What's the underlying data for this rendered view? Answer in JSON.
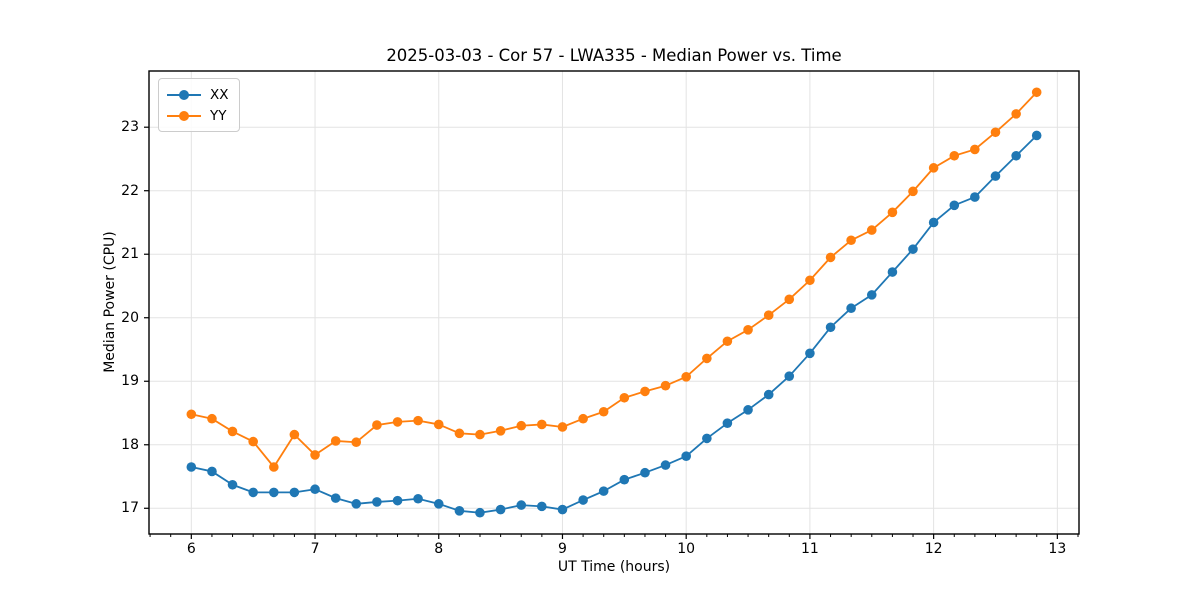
{
  "chart_data": {
    "type": "line",
    "title": "2025-03-03 - Cor 57 - LWA335 - Median Power vs. Time",
    "xlabel": "UT Time (hours)",
    "ylabel": "Median Power (CPU)",
    "xlim": [
      5.658,
      13.175
    ],
    "ylim": [
      16.595,
      23.885
    ],
    "x_ticks": [
      6,
      7,
      8,
      9,
      10,
      11,
      12,
      13
    ],
    "y_ticks": [
      17,
      18,
      19,
      20,
      21,
      22,
      23
    ],
    "x_minor_step": 0.16667,
    "grid": true,
    "grid_color": "#e3e3e3",
    "legend_position": "upper left",
    "x": [
      6.0,
      6.167,
      6.333,
      6.5,
      6.667,
      6.833,
      7.0,
      7.167,
      7.333,
      7.5,
      7.667,
      7.833,
      8.0,
      8.167,
      8.333,
      8.5,
      8.667,
      8.833,
      9.0,
      9.167,
      9.333,
      9.5,
      9.667,
      9.833,
      10.0,
      10.167,
      10.333,
      10.5,
      10.667,
      10.833,
      11.0,
      11.167,
      11.333,
      11.5,
      11.667,
      11.833,
      12.0,
      12.167,
      12.333,
      12.5,
      12.667,
      12.833
    ],
    "series": [
      {
        "name": "XX",
        "color": "#1f77b4",
        "values": [
          17.65,
          17.58,
          17.37,
          17.25,
          17.25,
          17.25,
          17.3,
          17.16,
          17.07,
          17.1,
          17.12,
          17.15,
          17.07,
          16.96,
          16.93,
          16.98,
          17.05,
          17.03,
          16.98,
          17.13,
          17.27,
          17.45,
          17.56,
          17.68,
          17.82,
          18.1,
          18.34,
          18.55,
          18.79,
          19.08,
          19.44,
          19.85,
          20.15,
          20.36,
          20.72,
          21.08,
          21.5,
          21.77,
          21.9,
          22.23,
          22.55,
          22.87
        ]
      },
      {
        "name": "YY",
        "color": "#ff7f0e",
        "values": [
          18.48,
          18.41,
          18.21,
          18.05,
          17.65,
          18.16,
          17.84,
          18.06,
          18.04,
          18.31,
          18.36,
          18.38,
          18.32,
          18.18,
          18.16,
          18.22,
          18.3,
          18.32,
          18.28,
          18.41,
          18.52,
          18.74,
          18.84,
          18.93,
          19.07,
          19.36,
          19.63,
          19.81,
          20.04,
          20.29,
          20.59,
          20.95,
          21.22,
          21.38,
          21.66,
          21.99,
          22.36,
          22.55,
          22.65,
          22.92,
          23.21,
          23.55
        ]
      }
    ]
  }
}
